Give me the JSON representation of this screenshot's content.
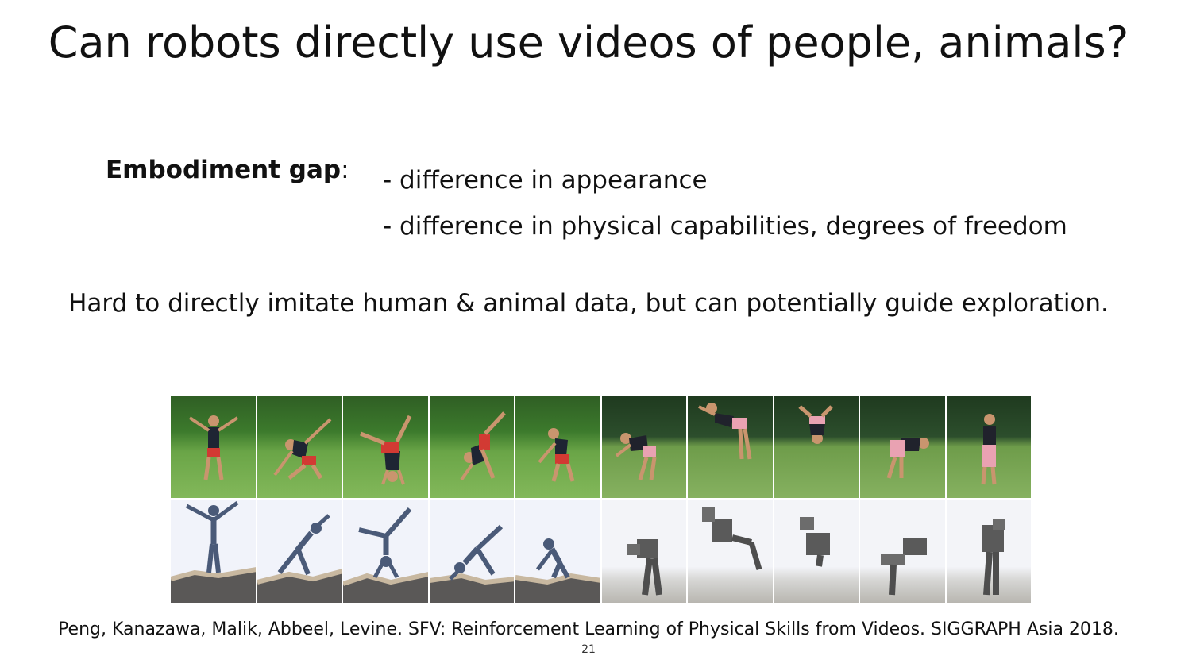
{
  "title": "Can robots directly use videos of people, animals?",
  "embodiment": {
    "label": "Embodiment gap",
    "colon": ":",
    "bullets": [
      "- difference in appearance",
      "- difference in physical capabilities, degrees of freedom"
    ]
  },
  "summary": "Hard to directly imitate human & animal data, but can potentially guide exploration.",
  "citation": "Peng, Kanazawa, Malik, Abbeel, Levine. SFV: Reinforcement Learning of Physical Skills from Videos. SIGGRAPH Asia 2018.",
  "page_number": "21",
  "colors": {
    "text": "#111111",
    "grass": "#83b85a",
    "sim_background": "#f1f3fa",
    "humanoid": "#4a5a78",
    "robot": "#5a5a5a"
  }
}
